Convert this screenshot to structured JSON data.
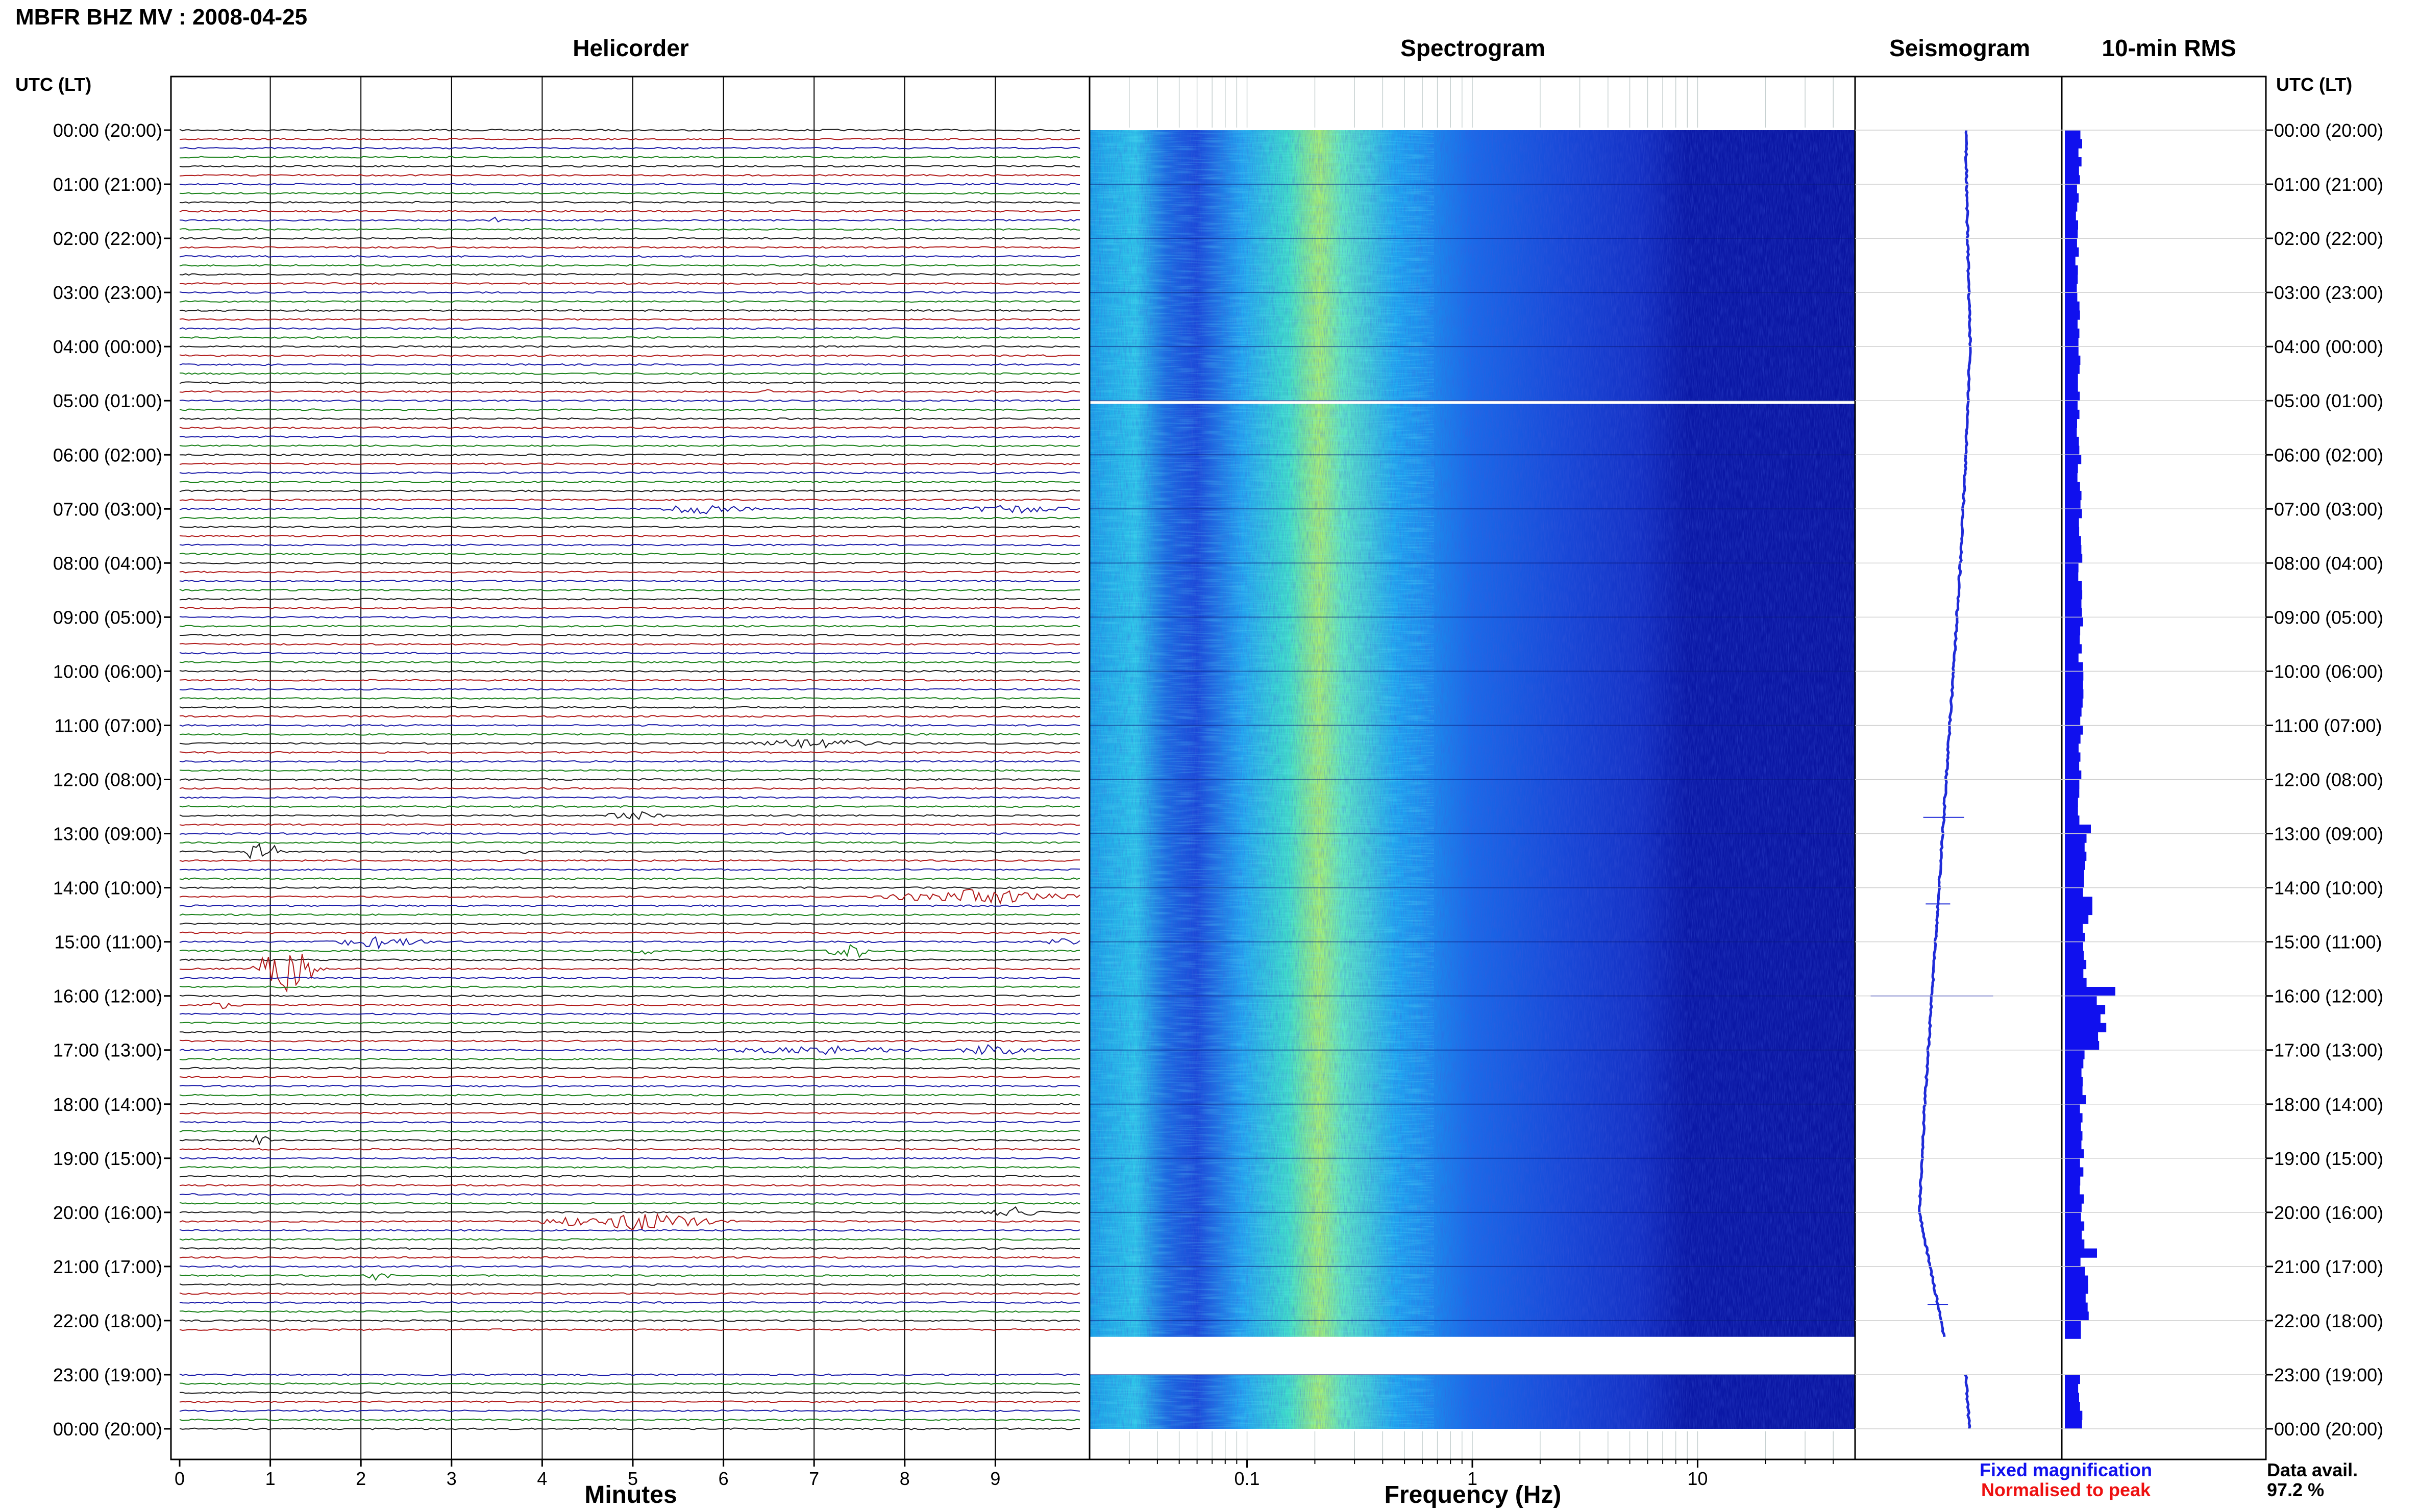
{
  "title": "MBFR BHZ MV : 2008-04-25",
  "panels": {
    "helicorder": "Helicorder",
    "spectrogram": "Spectrogram",
    "seismogram": "Seismogram",
    "rms": "10-min RMS"
  },
  "axis": {
    "left_header": "UTC (LT)",
    "right_header": "UTC (LT)",
    "minutes_label": "Minutes",
    "frequency_label": "Frequency (Hz)"
  },
  "legend": {
    "fixed": "Fixed magnification",
    "normalised": "Normalised to peak",
    "fixed_color": "#1010ee",
    "normalised_color": "#ee1010"
  },
  "data_avail": {
    "label": "Data avail.",
    "value": "97.2 %"
  },
  "colors": {
    "trace_cycle": [
      "#1a1a1a",
      "#b01818",
      "#1a1aa8",
      "#178017"
    ],
    "seismogram": "#1f2bd8",
    "rms": "#1010ee",
    "spectrogram_dark": "#0a14a0",
    "spectrogram_peak": "#c8ff3c"
  },
  "chart_data": [
    {
      "type": "line",
      "name": "helicorder",
      "x_label": "Minutes",
      "x_ticks": [
        "0",
        "1",
        "2",
        "3",
        "4",
        "5",
        "6",
        "7",
        "8",
        "9"
      ],
      "xlim": [
        0,
        10
      ],
      "rows_per_hour": 6,
      "hours_covered": 24,
      "gap_hours": [
        22,
        23
      ],
      "y_ticks": [
        "00:00 (20:00)",
        "01:00 (21:00)",
        "02:00 (22:00)",
        "03:00 (23:00)",
        "04:00 (00:00)",
        "05:00 (01:00)",
        "06:00 (02:00)",
        "07:00 (03:00)",
        "08:00 (04:00)",
        "09:00 (05:00)",
        "10:00 (06:00)",
        "11:00 (07:00)",
        "12:00 (08:00)",
        "13:00 (09:00)",
        "14:00 (10:00)",
        "15:00 (11:00)",
        "16:00 (12:00)",
        "17:00 (13:00)",
        "18:00 (14:00)",
        "19:00 (15:00)",
        "20:00 (16:00)",
        "21:00 (17:00)",
        "22:00 (18:00)",
        "23:00 (19:00)",
        "00:00 (20:00)"
      ],
      "events": [
        {
          "row": 10,
          "minute": 3.5,
          "amp": 0.15,
          "dur": 0.1
        },
        {
          "row": 29,
          "minute": 6.5,
          "amp": 0.3,
          "dur": 0.05
        },
        {
          "row": 42,
          "minute": 5.8,
          "amp": 0.25,
          "dur": 0.6
        },
        {
          "row": 42,
          "minute": 9.2,
          "amp": 0.2,
          "dur": 0.7
        },
        {
          "row": 68,
          "minute": 7.0,
          "amp": 0.2,
          "dur": 0.9
        },
        {
          "row": 76,
          "minute": 5.0,
          "amp": 0.2,
          "dur": 0.4
        },
        {
          "row": 80,
          "minute": 0.9,
          "amp": 0.7,
          "dur": 0.25
        },
        {
          "row": 80,
          "minute": 3.8,
          "amp": 0.15,
          "dur": 0.2
        },
        {
          "row": 85,
          "minute": 8.8,
          "amp": 0.35,
          "dur": 1.3
        },
        {
          "row": 90,
          "minute": 2.2,
          "amp": 0.3,
          "dur": 0.6
        },
        {
          "row": 90,
          "minute": 9.8,
          "amp": 0.2,
          "dur": 0.3
        },
        {
          "row": 91,
          "minute": 5.1,
          "amp": 0.3,
          "dur": 0.15
        },
        {
          "row": 91,
          "minute": 7.4,
          "amp": 0.5,
          "dur": 0.3
        },
        {
          "row": 93,
          "minute": 1.2,
          "amp": 1.4,
          "dur": 0.45
        },
        {
          "row": 97,
          "minute": 0.5,
          "amp": 0.2,
          "dur": 0.2
        },
        {
          "row": 102,
          "minute": 9.0,
          "amp": 0.3,
          "dur": 0.5
        },
        {
          "row": 102,
          "minute": 7.0,
          "amp": 0.2,
          "dur": 1.3
        },
        {
          "row": 112,
          "minute": 0.9,
          "amp": 0.3,
          "dur": 0.15
        },
        {
          "row": 120,
          "minute": 9.2,
          "amp": 0.3,
          "dur": 0.4
        },
        {
          "row": 121,
          "minute": 5.0,
          "amp": 0.4,
          "dur": 1.2
        },
        {
          "row": 127,
          "minute": 2.2,
          "amp": 0.3,
          "dur": 0.15
        }
      ]
    },
    {
      "type": "heatmap",
      "name": "spectrogram",
      "x_label": "Frequency (Hz)",
      "x_scale": "log",
      "xlim": [
        0.02,
        50
      ],
      "x_ticks": [
        "0.1",
        "1",
        "10"
      ],
      "peak_frequency_hz": 0.25,
      "gaps_hours": [
        [
          5.0,
          5.06
        ],
        [
          22.3,
          23.0
        ]
      ]
    },
    {
      "type": "line",
      "name": "seismogram",
      "gaps_hours": [
        [
          22.3,
          23.0
        ]
      ],
      "offset": [
        [
          0,
          0
        ],
        [
          2,
          0.05
        ],
        [
          4,
          0.12
        ],
        [
          6,
          0.0
        ],
        [
          8,
          -0.15
        ],
        [
          10,
          -0.35
        ],
        [
          12,
          -0.55
        ],
        [
          14,
          -0.75
        ],
        [
          16,
          -0.95
        ],
        [
          18,
          -1.15
        ],
        [
          20,
          -1.3
        ],
        [
          21,
          -1.0
        ],
        [
          22.3,
          -0.6
        ],
        [
          23,
          0.0
        ],
        [
          24,
          0.1
        ]
      ],
      "spikes": [
        {
          "hour": 12.7,
          "width": 1.0
        },
        {
          "hour": 14.3,
          "width": 0.6
        },
        {
          "hour": 16.0,
          "width": 3.0
        },
        {
          "hour": 21.7,
          "width": 0.5
        }
      ]
    },
    {
      "type": "bar",
      "name": "10-min RMS",
      "orientation": "horizontal",
      "values_hourly": [
        1.0,
        0.85,
        0.8,
        0.9,
        1.0,
        0.9,
        0.95,
        1.0,
        1.0,
        1.05,
        1.1,
        1.05,
        1.0,
        1.3,
        1.35,
        1.4,
        2.4,
        1.2,
        1.1,
        1.15,
        1.2,
        1.4,
        1.1,
        1.0
      ],
      "peaks": [
        {
          "hour": 12.8,
          "value": 1.7
        },
        {
          "hour": 14.25,
          "value": 1.8
        },
        {
          "hour": 15.9,
          "value": 3.3
        },
        {
          "hour": 20.6,
          "value": 2.1
        }
      ],
      "gaps_hours": [
        [
          22.3,
          23.0
        ]
      ]
    }
  ]
}
